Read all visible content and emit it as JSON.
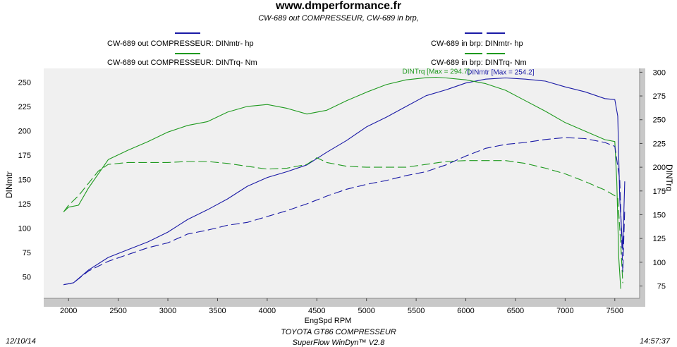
{
  "header": {
    "title": "www.dmperformance.fr",
    "subtitle": "CW-689 out COMPRESSEUR, CW-689 in brp,"
  },
  "legend": [
    {
      "label": "CW-689 out COMPRESSEUR: DINmtr-  hp",
      "color": "#1a1aa6",
      "style": "solid"
    },
    {
      "label": "CW-689 out COMPRESSEUR: DINTrq-  Nm",
      "color": "#1f9a1f",
      "style": "solid"
    },
    {
      "label": "CW-689 in brp: DINmtr-  hp",
      "color": "#1a1aa6",
      "style": "dashed"
    },
    {
      "label": "CW-689 in brp: DINTrq-  Nm",
      "color": "#1f9a1f",
      "style": "dashed"
    }
  ],
  "footer": {
    "model": "TOYOTA GT86 COMPRESSEUR",
    "software": "SuperFlow WinDyn™ V2.8",
    "date": "12/10/14",
    "time": "14:57:37"
  },
  "colors": {
    "plot_bg": "#f0f0f0",
    "frame": "#c8c8c8",
    "power": "#1a1aa6",
    "torque": "#1f9a1f"
  },
  "chart_data": {
    "type": "line",
    "xlabel": "EngSpd  RPM",
    "ylabel": "DINmtr",
    "y2label": "DINTrq",
    "xlim": [
      1750,
      7750
    ],
    "ylim": [
      28,
      264
    ],
    "y2lim": [
      62,
      304
    ],
    "x_ticks": [
      2000,
      2500,
      3000,
      3500,
      4000,
      4500,
      5000,
      5500,
      6000,
      6500,
      7000,
      7500
    ],
    "y_ticks": [
      50,
      75,
      100,
      125,
      150,
      175,
      200,
      225,
      250
    ],
    "y2_ticks": [
      75,
      100,
      125,
      150,
      175,
      200,
      225,
      250,
      275,
      300
    ],
    "grid": false,
    "annotations": [
      {
        "text": "DINTrq [Max = 294.7]",
        "x": 5700,
        "y2": 294.7,
        "color": "#1f9a1f"
      },
      {
        "text": "DINmtr [Max = 254.2]",
        "x": 6350,
        "y": 254.2,
        "color": "#1a1aa6"
      }
    ],
    "series": [
      {
        "name": "CW-689 out COMPRESSEUR: DINmtr-  hp",
        "axis": "left",
        "dashed": false,
        "color": "#1a1aa6",
        "x": [
          1950,
          2050,
          2200,
          2400,
          2600,
          2800,
          3000,
          3200,
          3400,
          3600,
          3800,
          4000,
          4200,
          4400,
          4600,
          4800,
          5000,
          5200,
          5400,
          5600,
          5800,
          6000,
          6200,
          6400,
          6600,
          6800,
          7000,
          7200,
          7400,
          7500,
          7530,
          7550,
          7580,
          7600
        ],
        "y": [
          42,
          44,
          57,
          70,
          78,
          86,
          96,
          109,
          119,
          130,
          143,
          152,
          158,
          165,
          178,
          190,
          204,
          214,
          225,
          236,
          242,
          249,
          253,
          254.2,
          253,
          251,
          245,
          240,
          233,
          232,
          215,
          130,
          78,
          148
        ]
      },
      {
        "name": "CW-689 out COMPRESSEUR: DINTrq-  Nm",
        "axis": "right",
        "dashed": false,
        "color": "#1f9a1f",
        "x": [
          1950,
          2000,
          2100,
          2200,
          2400,
          2600,
          2800,
          3000,
          3200,
          3400,
          3600,
          3800,
          4000,
          4200,
          4400,
          4600,
          4800,
          5000,
          5200,
          5400,
          5600,
          5700,
          5800,
          6000,
          6200,
          6400,
          6600,
          6800,
          7000,
          7200,
          7400,
          7500,
          7520,
          7540,
          7560
        ],
        "y": [
          153,
          158,
          160,
          178,
          208,
          218,
          227,
          237,
          244,
          248,
          258,
          264,
          266,
          262,
          256,
          260,
          270,
          279,
          287,
          292,
          294.2,
          294.7,
          294,
          292,
          288,
          281,
          270,
          259,
          247,
          238,
          229,
          227,
          185,
          105,
          72
        ]
      },
      {
        "name": "CW-689 in brp: DINmtr-  hp",
        "axis": "left",
        "dashed": true,
        "color": "#1a1aa6",
        "x": [
          1950,
          2050,
          2200,
          2400,
          2600,
          2800,
          3000,
          3200,
          3400,
          3600,
          3800,
          4000,
          4200,
          4400,
          4600,
          4800,
          5000,
          5200,
          5400,
          5600,
          5800,
          6000,
          6200,
          6400,
          6600,
          6800,
          7000,
          7200,
          7400,
          7500,
          7550,
          7580,
          7600
        ],
        "y": [
          42,
          44,
          56,
          66,
          73,
          80,
          85,
          94,
          98,
          103,
          106,
          112,
          118,
          125,
          133,
          140,
          145,
          149,
          154,
          158,
          165,
          174,
          182,
          186,
          188,
          191,
          193,
          192,
          188,
          184,
          150,
          55,
          120
        ]
      },
      {
        "name": "CW-689 in brp: DINTrq-  Nm",
        "axis": "right",
        "dashed": true,
        "color": "#1f9a1f",
        "x": [
          1950,
          2000,
          2100,
          2200,
          2300,
          2400,
          2600,
          2800,
          3000,
          3200,
          3400,
          3600,
          3800,
          4000,
          4200,
          4400,
          4500,
          4600,
          4800,
          5000,
          5200,
          5400,
          5600,
          5800,
          6000,
          6200,
          6400,
          6600,
          6800,
          7000,
          7200,
          7400,
          7500,
          7530,
          7560,
          7580
        ],
        "y": [
          153,
          160,
          170,
          183,
          196,
          203,
          205,
          205,
          205,
          206,
          206,
          204,
          201,
          198,
          199,
          203,
          210,
          205,
          201,
          200,
          200,
          200,
          203,
          206,
          207,
          207,
          207,
          204,
          199,
          193,
          185,
          176,
          170,
          168,
          120,
          78
        ]
      }
    ]
  }
}
